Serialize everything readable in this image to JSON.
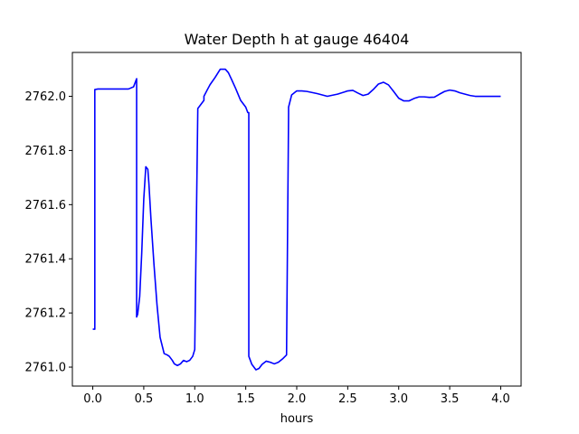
{
  "chart_data": {
    "type": "line",
    "title": "Water Depth h at gauge 46404",
    "xlabel": "hours",
    "ylabel": "",
    "xlim": [
      -0.2,
      4.2
    ],
    "ylim": [
      2760.93,
      2762.162
    ],
    "xticks": [
      0.0,
      0.5,
      1.0,
      1.5,
      2.0,
      2.5,
      3.0,
      3.5,
      4.0
    ],
    "xtick_labels": [
      "0.0",
      "0.5",
      "1.0",
      "1.5",
      "2.0",
      "2.5",
      "3.0",
      "3.5",
      "4.0"
    ],
    "yticks": [
      2761.0,
      2761.2,
      2761.4,
      2761.6,
      2761.8,
      2762.0
    ],
    "ytick_labels": [
      "2761.0",
      "2761.2",
      "2761.4",
      "2761.6",
      "2761.8",
      "2762.0"
    ],
    "grid": false,
    "series": [
      {
        "name": "h",
        "color": "#0000ff",
        "x": [
          0.0,
          0.02,
          0.02,
          0.05,
          0.1,
          0.2,
          0.3,
          0.35,
          0.4,
          0.43,
          0.43,
          0.44,
          0.46,
          0.48,
          0.5,
          0.52,
          0.54,
          0.55,
          0.57,
          0.6,
          0.63,
          0.66,
          0.7,
          0.73,
          0.75,
          0.78,
          0.8,
          0.83,
          0.86,
          0.89,
          0.92,
          0.95,
          0.98,
          1.0,
          1.03,
          1.06,
          1.09,
          1.09,
          1.12,
          1.15,
          1.2,
          1.25,
          1.3,
          1.33,
          1.36,
          1.4,
          1.45,
          1.5,
          1.52,
          1.53,
          1.53,
          1.56,
          1.6,
          1.63,
          1.66,
          1.7,
          1.74,
          1.78,
          1.82,
          1.86,
          1.9,
          1.92,
          1.92,
          1.95,
          2.0,
          2.05,
          2.1,
          2.2,
          2.3,
          2.4,
          2.5,
          2.55,
          2.6,
          2.65,
          2.7,
          2.75,
          2.8,
          2.85,
          2.9,
          2.95,
          3.0,
          3.05,
          3.1,
          3.15,
          3.2,
          3.25,
          3.3,
          3.35,
          3.4,
          3.45,
          3.5,
          3.55,
          3.6,
          3.65,
          3.7,
          3.75,
          3.8,
          3.85,
          3.9,
          3.95,
          4.0
        ],
        "values": [
          2761.14,
          2761.14,
          2762.025,
          2762.027,
          2762.027,
          2762.027,
          2762.027,
          2762.027,
          2762.035,
          2762.065,
          2761.185,
          2761.195,
          2761.26,
          2761.42,
          2761.62,
          2761.74,
          2761.73,
          2761.68,
          2761.55,
          2761.38,
          2761.23,
          2761.11,
          2761.05,
          2761.045,
          2761.04,
          2761.025,
          2761.012,
          2761.006,
          2761.012,
          2761.025,
          2761.02,
          2761.025,
          2761.04,
          2761.065,
          2761.955,
          2761.97,
          2761.985,
          2762.0,
          2762.022,
          2762.043,
          2762.07,
          2762.1,
          2762.1,
          2762.087,
          2762.063,
          2762.03,
          2761.985,
          2761.96,
          2761.94,
          2761.94,
          2761.04,
          2761.01,
          2760.99,
          2760.995,
          2761.01,
          2761.022,
          2761.018,
          2761.012,
          2761.018,
          2761.03,
          2761.045,
          2761.935,
          2761.96,
          2762.005,
          2762.02,
          2762.02,
          2762.018,
          2762.01,
          2762.0,
          2762.008,
          2762.02,
          2762.022,
          2762.012,
          2762.003,
          2762.008,
          2762.025,
          2762.045,
          2762.052,
          2762.042,
          2762.018,
          2761.993,
          2761.983,
          2761.983,
          2761.992,
          2761.998,
          2761.998,
          2761.996,
          2761.997,
          2762.008,
          2762.018,
          2762.023,
          2762.02,
          2762.013,
          2762.008,
          2762.003,
          2762.0,
          2762.0,
          2762.0,
          2762.0,
          2762.0,
          2762.0
        ]
      }
    ]
  }
}
